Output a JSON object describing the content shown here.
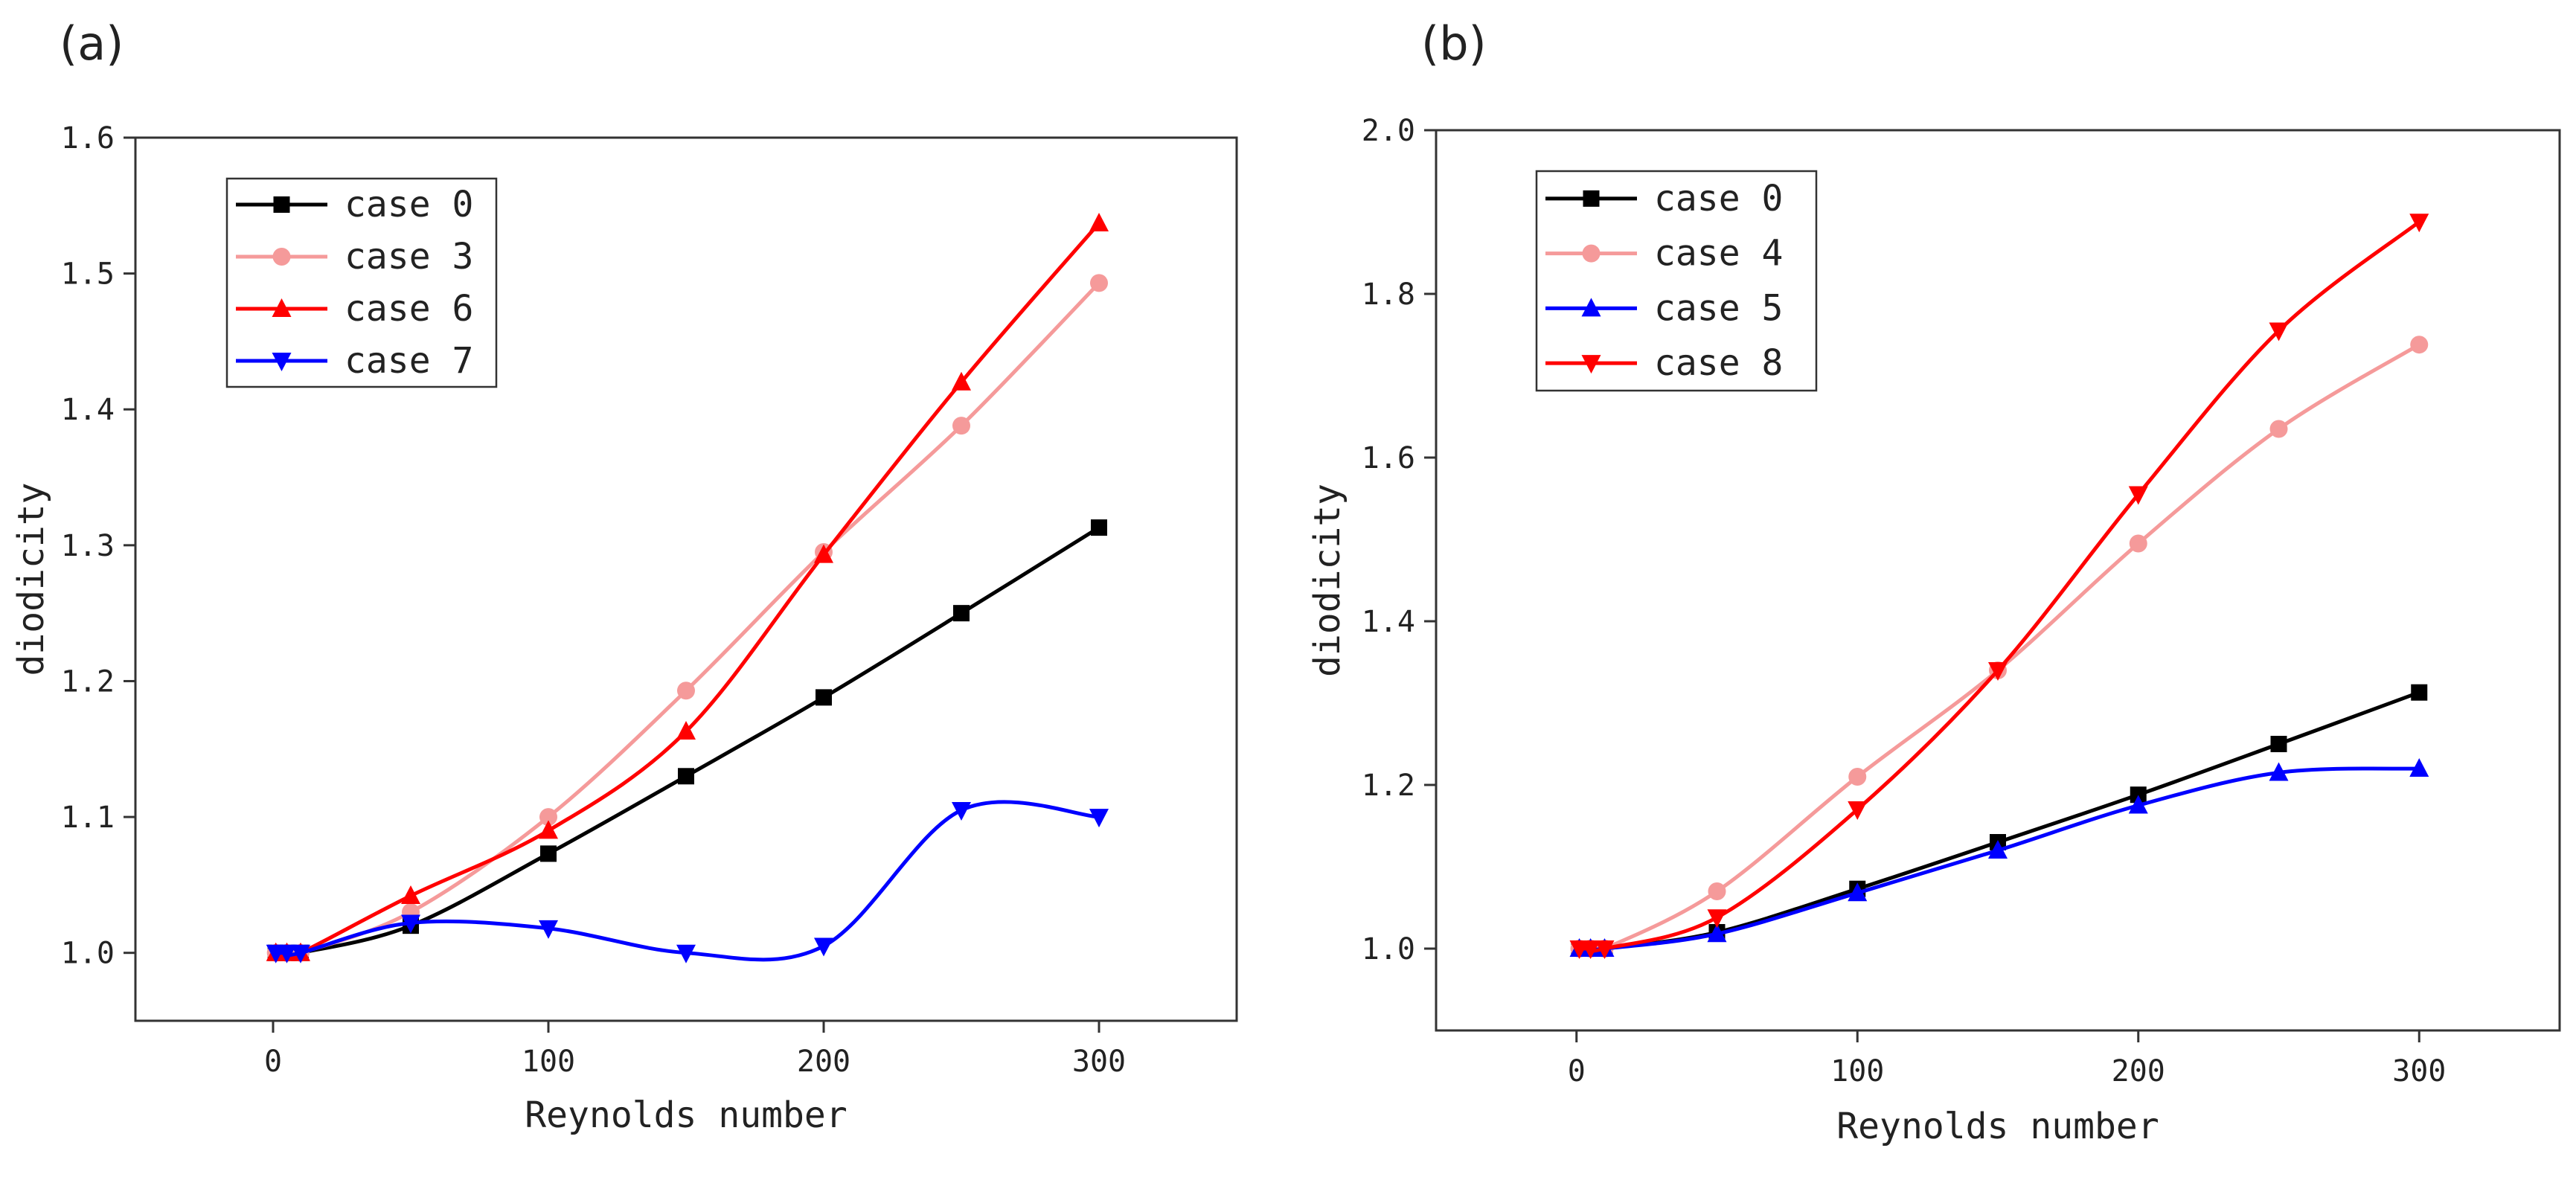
{
  "chart_data": [
    {
      "type": "line",
      "panel_label": "(a)",
      "xlabel": "Reynolds number",
      "ylabel": "diodicity",
      "xlim": [
        -50,
        350
      ],
      "ylim": [
        0.95,
        1.6
      ],
      "xticks": [
        0,
        100,
        200,
        300
      ],
      "xtick_labels": [
        "0",
        "100",
        "200",
        "300"
      ],
      "yticks": [
        1.0,
        1.1,
        1.2,
        1.3,
        1.4,
        1.5,
        1.6
      ],
      "ytick_labels": [
        "1.0",
        "1.1",
        "1.2",
        "1.3",
        "1.4",
        "1.5",
        "1.6"
      ],
      "legend_position": "top-left",
      "x": [
        1,
        5,
        10,
        50,
        100,
        150,
        200,
        250,
        300
      ],
      "series": [
        {
          "name": "case 0",
          "marker": "square",
          "color": "#000000",
          "values": [
            1.0,
            1.0,
            1.0,
            1.02,
            1.073,
            1.13,
            1.188,
            1.25,
            1.313
          ]
        },
        {
          "name": "case 3",
          "marker": "circle",
          "color": "#f59a9a",
          "values": [
            1.0,
            1.0,
            1.0,
            1.03,
            1.1,
            1.193,
            1.295,
            1.388,
            1.493
          ]
        },
        {
          "name": "case 6",
          "marker": "triangle-up",
          "color": "#ff0000",
          "values": [
            1.0,
            1.0,
            1.0,
            1.042,
            1.09,
            1.163,
            1.293,
            1.42,
            1.537
          ]
        },
        {
          "name": "case 7",
          "marker": "triangle-down",
          "color": "#0000ff",
          "values": [
            1.0,
            1.0,
            1.0,
            1.022,
            1.018,
            1.0,
            1.005,
            1.105,
            1.1
          ]
        }
      ]
    },
    {
      "type": "line",
      "panel_label": "(b)",
      "xlabel": "Reynolds number",
      "ylabel": "diodicity",
      "xlim": [
        -50,
        350
      ],
      "ylim": [
        0.9,
        2.0
      ],
      "xticks": [
        0,
        100,
        200,
        300
      ],
      "xtick_labels": [
        "0",
        "100",
        "200",
        "300"
      ],
      "yticks": [
        1.0,
        1.2,
        1.4,
        1.6,
        1.8,
        2.0
      ],
      "ytick_labels": [
        "1.0",
        "1.2",
        "1.4",
        "1.6",
        "1.8",
        "2.0"
      ],
      "legend_position": "top-left",
      "x": [
        1,
        5,
        10,
        50,
        100,
        150,
        200,
        250,
        300
      ],
      "series": [
        {
          "name": "case 0",
          "marker": "square",
          "color": "#000000",
          "values": [
            1.0,
            1.0,
            1.0,
            1.02,
            1.073,
            1.13,
            1.188,
            1.25,
            1.313
          ]
        },
        {
          "name": "case 4",
          "marker": "circle",
          "color": "#f59a9a",
          "values": [
            1.0,
            1.0,
            1.0,
            1.07,
            1.21,
            1.34,
            1.495,
            1.635,
            1.738
          ]
        },
        {
          "name": "case 5",
          "marker": "triangle-up",
          "color": "#0000ff",
          "values": [
            1.0,
            1.0,
            1.0,
            1.018,
            1.068,
            1.12,
            1.175,
            1.215,
            1.22
          ]
        },
        {
          "name": "case 8",
          "marker": "triangle-down",
          "color": "#ff0000",
          "values": [
            1.0,
            1.0,
            1.0,
            1.038,
            1.17,
            1.34,
            1.555,
            1.755,
            1.888
          ]
        }
      ]
    }
  ]
}
